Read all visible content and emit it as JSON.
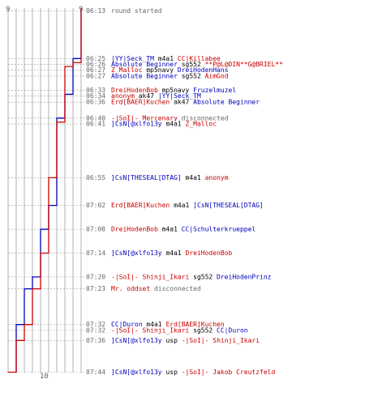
{
  "colors": {
    "blue": "#0000bb",
    "red": "#cc0000",
    "gray": "#666666",
    "grid": "#b0b0b0"
  },
  "header": {
    "left_count": "9",
    "right_count": "9"
  },
  "footer": {
    "bottom_count": "10"
  },
  "chart_data": {
    "type": "line",
    "series": [
      {
        "name": "blue",
        "points": [
          [
            "06:13",
            9
          ],
          [
            "06:25",
            8
          ],
          [
            "06:26",
            8
          ],
          [
            "06:27",
            8
          ],
          [
            "06:33",
            8
          ],
          [
            "06:34",
            7
          ],
          [
            "06:36",
            7
          ],
          [
            "06:40",
            6
          ],
          [
            "06:41",
            6
          ],
          [
            "06:55",
            6
          ],
          [
            "07:02",
            5
          ],
          [
            "07:08",
            4
          ],
          [
            "07:14",
            4
          ],
          [
            "07:20",
            3
          ],
          [
            "07:23",
            2
          ],
          [
            "07:32",
            1
          ],
          [
            "07:36",
            1
          ],
          [
            "07:44",
            1
          ]
        ]
      },
      {
        "name": "red",
        "points": [
          [
            "06:13",
            9
          ],
          [
            "06:25",
            9
          ],
          [
            "06:26",
            8
          ],
          [
            "06:27",
            7
          ],
          [
            "06:33",
            7
          ],
          [
            "06:34",
            7
          ],
          [
            "06:36",
            7
          ],
          [
            "06:40",
            7
          ],
          [
            "06:41",
            6
          ],
          [
            "06:55",
            5
          ],
          [
            "07:02",
            5
          ],
          [
            "07:08",
            5
          ],
          [
            "07:14",
            4
          ],
          [
            "07:20",
            4
          ],
          [
            "07:23",
            3
          ],
          [
            "07:32",
            2
          ],
          [
            "07:36",
            1
          ],
          [
            "07:44",
            0
          ]
        ]
      }
    ]
  },
  "events": [
    {
      "time": "06:13",
      "parts": [
        {
          "t": "round started",
          "c": "gray"
        }
      ]
    },
    {
      "time": "06:25",
      "parts": [
        {
          "t": "|YY|Seck_TM",
          "c": "blue"
        },
        {
          "t": " m4a1 ",
          "c": "black"
        },
        {
          "t": "CC|Killabee",
          "c": "red"
        }
      ]
    },
    {
      "time": "06:26",
      "parts": [
        {
          "t": "Absolute Beginner",
          "c": "blue"
        },
        {
          "t": " sg552 ",
          "c": "black"
        },
        {
          "t": "**P@L@DIN**G@BRIEL**",
          "c": "red"
        }
      ]
    },
    {
      "time": "06:27",
      "parts": [
        {
          "t": "Z_Malloc",
          "c": "red"
        },
        {
          "t": " mp5navy ",
          "c": "black"
        },
        {
          "t": "DreiHodenHans",
          "c": "blue"
        }
      ]
    },
    {
      "time": "06:27",
      "parts": [
        {
          "t": "Absolute Beginner",
          "c": "blue"
        },
        {
          "t": " sg552 ",
          "c": "black"
        },
        {
          "t": "AimGod",
          "c": "red"
        }
      ]
    },
    {
      "time": "06:33",
      "parts": [
        {
          "t": "DreiHodenBob",
          "c": "red"
        },
        {
          "t": " mp5navy ",
          "c": "black"
        },
        {
          "t": "Fruzelmuzel",
          "c": "blue"
        }
      ]
    },
    {
      "time": "06:34",
      "parts": [
        {
          "t": "anonym",
          "c": "red"
        },
        {
          "t": " ak47 ",
          "c": "black"
        },
        {
          "t": "|YY|Seck_TM",
          "c": "blue"
        }
      ]
    },
    {
      "time": "06:36",
      "parts": [
        {
          "t": "Erd[BAER]Kuchen",
          "c": "red"
        },
        {
          "t": " ak47 ",
          "c": "black"
        },
        {
          "t": "Absolute Beginner",
          "c": "blue"
        }
      ]
    },
    {
      "time": "06:40",
      "parts": [
        {
          "t": "-|SoI|- Mercenary",
          "c": "red"
        },
        {
          "t": " disconnected",
          "c": "gray"
        }
      ]
    },
    {
      "time": "06:41",
      "parts": [
        {
          "t": "]CsN[@xlfo13y",
          "c": "blue"
        },
        {
          "t": " m4a1 ",
          "c": "black"
        },
        {
          "t": "Z_Malloc",
          "c": "red"
        }
      ]
    },
    {
      "time": "06:55",
      "parts": [
        {
          "t": "]CsN[THESEAL[DTAG]",
          "c": "blue"
        },
        {
          "t": " m4a1 ",
          "c": "black"
        },
        {
          "t": "anonym",
          "c": "red"
        }
      ]
    },
    {
      "time": "07:02",
      "parts": [
        {
          "t": "Erd[BAER]Kuchen",
          "c": "red"
        },
        {
          "t": " m4a1 ",
          "c": "black"
        },
        {
          "t": "]CsN[THESEAL[DTAG]",
          "c": "blue"
        }
      ]
    },
    {
      "time": "07:08",
      "parts": [
        {
          "t": "DreiHodenBob",
          "c": "red"
        },
        {
          "t": " m4a1 ",
          "c": "black"
        },
        {
          "t": "CC|Schulterkrueppel",
          "c": "blue"
        }
      ]
    },
    {
      "time": "07:14",
      "parts": [
        {
          "t": "]CsN[@xlfo13y",
          "c": "blue"
        },
        {
          "t": " m4a1 ",
          "c": "black"
        },
        {
          "t": "DreiHodenBob",
          "c": "red"
        }
      ]
    },
    {
      "time": "07:20",
      "parts": [
        {
          "t": "-|SoI|- Shinji_Ikari",
          "c": "red"
        },
        {
          "t": " sg552 ",
          "c": "black"
        },
        {
          "t": "DreiHodenPrinz",
          "c": "blue"
        }
      ]
    },
    {
      "time": "07:23",
      "parts": [
        {
          "t": "Mr. oddset",
          "c": "red"
        },
        {
          "t": " disconnected",
          "c": "gray"
        }
      ]
    },
    {
      "time": "07:32",
      "parts": [
        {
          "t": "CC|Duron",
          "c": "blue"
        },
        {
          "t": " m4a1 ",
          "c": "black"
        },
        {
          "t": "Erd[BAER]Kuchen",
          "c": "red"
        }
      ]
    },
    {
      "time": "07:32",
      "parts": [
        {
          "t": "-|SoI|- Shinji_Ikari",
          "c": "red"
        },
        {
          "t": " sg552 ",
          "c": "black"
        },
        {
          "t": "CC|Duron",
          "c": "blue"
        }
      ]
    },
    {
      "time": "07:36",
      "parts": [
        {
          "t": "]CsN[@xlfo13y",
          "c": "blue"
        },
        {
          "t": " usp ",
          "c": "black"
        },
        {
          "t": "-|SoI|- Shinji_Ikari",
          "c": "red"
        }
      ]
    },
    {
      "time": "07:44",
      "parts": [
        {
          "t": "]CsN[@xlfo13y",
          "c": "blue"
        },
        {
          "t": " usp ",
          "c": "black"
        },
        {
          "t": "-|SoI|- Jakob Creutzfeld",
          "c": "red"
        }
      ]
    }
  ]
}
